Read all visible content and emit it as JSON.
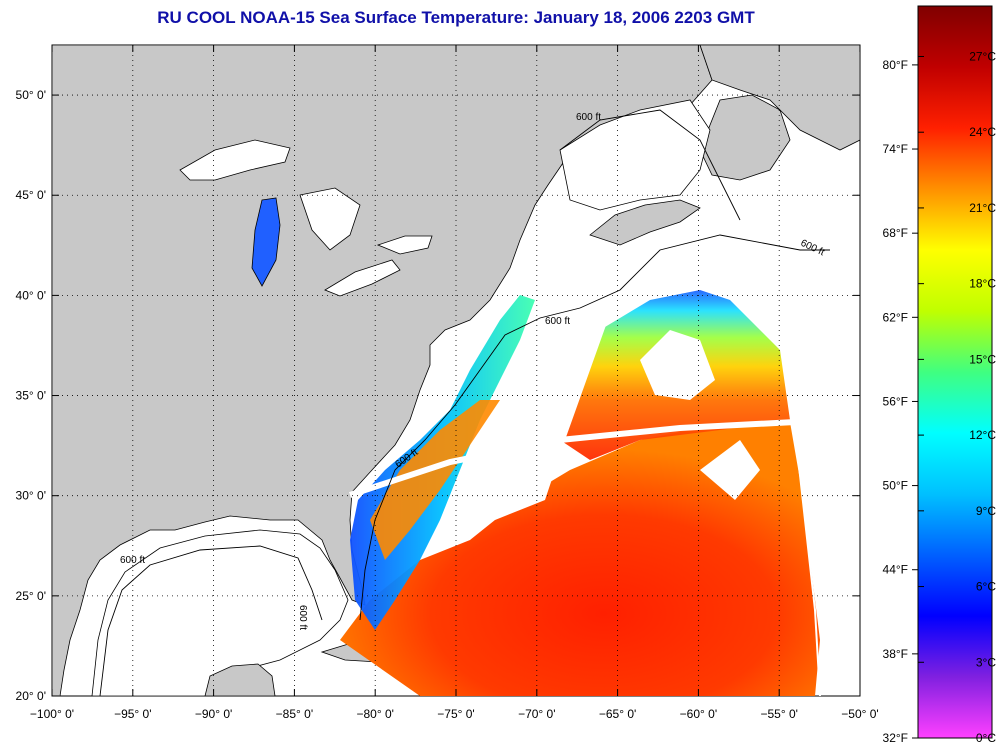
{
  "title": "RU COOL  NOAA-15  Sea Surface Temperature:  January 18, 2006 2203 GMT",
  "map": {
    "lon_range": [
      -100,
      -50
    ],
    "lat_range": [
      20,
      52.5
    ],
    "lon_ticks": [
      {
        "value": -100,
        "label": "−100° 0'"
      },
      {
        "value": -95,
        "label": "−95° 0'"
      },
      {
        "value": -90,
        "label": "−90° 0'"
      },
      {
        "value": -85,
        "label": "−85° 0'"
      },
      {
        "value": -80,
        "label": "−80° 0'"
      },
      {
        "value": -75,
        "label": "−75° 0'"
      },
      {
        "value": -70,
        "label": "−70° 0'"
      },
      {
        "value": -65,
        "label": "−65° 0'"
      },
      {
        "value": -60,
        "label": "−60° 0'"
      },
      {
        "value": -55,
        "label": "−55° 0'"
      },
      {
        "value": -50,
        "label": "−50° 0'"
      }
    ],
    "lat_ticks": [
      {
        "value": 20,
        "label": "20° 0'"
      },
      {
        "value": 25,
        "label": "25° 0'"
      },
      {
        "value": 30,
        "label": "30° 0'"
      },
      {
        "value": 35,
        "label": "35° 0'"
      },
      {
        "value": 40,
        "label": "40° 0'"
      },
      {
        "value": 45,
        "label": "45° 0'"
      },
      {
        "value": 50,
        "label": "50° 0'"
      }
    ],
    "contour_label": "600 ft",
    "grid": "dotted",
    "land_color": "#c8c8c8",
    "no_data_color": "#ffffff"
  },
  "colorbar": {
    "fahrenheit_labels": [
      "32°F",
      "38°F",
      "44°F",
      "50°F",
      "56°F",
      "62°F",
      "68°F",
      "74°F",
      "80°F"
    ],
    "fahrenheit_values": [
      32,
      38,
      44,
      50,
      56,
      62,
      68,
      74,
      80
    ],
    "celsius_labels": [
      "0°C",
      "3°C",
      "6°C",
      "9°C",
      "12°C",
      "15°C",
      "18°C",
      "21°C",
      "24°C",
      "27°C"
    ],
    "celsius_values": [
      0,
      3,
      6,
      9,
      12,
      15,
      18,
      21,
      24,
      27
    ],
    "range_c": [
      0,
      29
    ],
    "colors": [
      "#ff40ff",
      "#8020e0",
      "#0000ff",
      "#0060ff",
      "#00c0ff",
      "#00ffff",
      "#40ff80",
      "#c0ff00",
      "#ffff00",
      "#ff9000",
      "#ff2000",
      "#c00000",
      "#800000"
    ]
  }
}
